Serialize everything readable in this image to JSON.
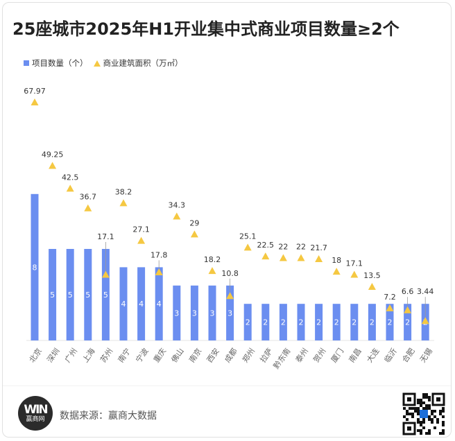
{
  "title": "25座城市2025年H1开业集中式商业项目数量≥2个",
  "legend": {
    "bar_label": "项目数量（个）",
    "triangle_label": "商业建筑面积（万㎡）"
  },
  "footer": {
    "source": "数据来源：赢商大数据",
    "logo_mark": "WIN",
    "logo_text": "赢商网"
  },
  "colors": {
    "bar": "#6b8ef0",
    "triangle": "#f5c842",
    "value_text": "#333333",
    "bar_text": "#ffffff",
    "axis_text": "#666666"
  },
  "chart_data": {
    "type": "bar",
    "categories": [
      "北京",
      "深圳",
      "广州",
      "上海",
      "苏州",
      "南宁",
      "宁波",
      "重庆",
      "佛山",
      "南京",
      "西安",
      "成都",
      "郑州",
      "拉萨",
      "黔东南",
      "泰州",
      "贺州",
      "厦门",
      "南昌",
      "大连",
      "临沂",
      "合肥",
      "无锡"
    ],
    "series": [
      {
        "name": "项目数量（个）",
        "type": "bar",
        "values": [
          8,
          5,
          5,
          5,
          5,
          4,
          4,
          4,
          3,
          3,
          3,
          3,
          2,
          2,
          2,
          2,
          2,
          2,
          2,
          2,
          2,
          2,
          2
        ]
      },
      {
        "name": "商业建筑面积（万㎡）",
        "type": "scatter",
        "marker": "triangle",
        "values": [
          67.97,
          49.25,
          42.5,
          36.7,
          17.1,
          38.2,
          27.1,
          17.8,
          34.3,
          29,
          18.2,
          10.8,
          25.1,
          22.5,
          22,
          22,
          21.7,
          18,
          17.1,
          13.5,
          7.2,
          6.6,
          3.44
        ]
      }
    ],
    "grid": false
  }
}
